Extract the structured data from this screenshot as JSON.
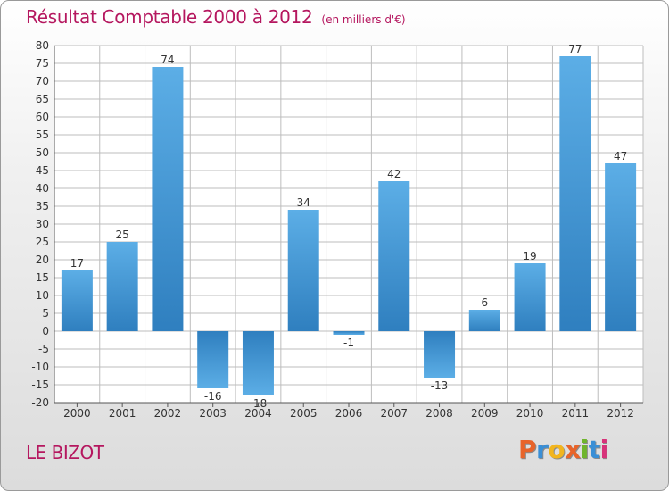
{
  "header": {
    "title": "Résultat Comptable 2000 à 2012",
    "subtitle": "(en milliers d'€)"
  },
  "footer": {
    "commune": "LE BIZOT",
    "logo_text": "Proxiti",
    "logo_colors": [
      "#e8642a",
      "#3a8fd6",
      "#f2b51e",
      "#e8642a",
      "#6fb52d",
      "#3a8fd6",
      "#d8327a"
    ]
  },
  "colors": {
    "title": "#b5175f",
    "bar_light": "#5caee6",
    "bar_dark": "#2f7fbf",
    "grid": "#bdbdbd"
  },
  "chart_data": {
    "type": "bar",
    "categories": [
      "2000",
      "2001",
      "2002",
      "2003",
      "2004",
      "2005",
      "2006",
      "2007",
      "2008",
      "2009",
      "2010",
      "2011",
      "2012"
    ],
    "values": [
      17,
      25,
      74,
      -16,
      -18,
      34,
      -1,
      42,
      -13,
      6,
      19,
      77,
      47
    ],
    "labels": [
      "17",
      "25",
      "74",
      "-16",
      "-18",
      "34",
      "-1",
      "42",
      "-13",
      "6",
      "19",
      "77",
      "47"
    ],
    "yticks": [
      80,
      75,
      70,
      65,
      60,
      55,
      50,
      45,
      40,
      35,
      30,
      25,
      20,
      15,
      10,
      5,
      0,
      -5,
      -10,
      -15,
      -20
    ],
    "ylim": [
      -20,
      80
    ],
    "grid": true
  }
}
